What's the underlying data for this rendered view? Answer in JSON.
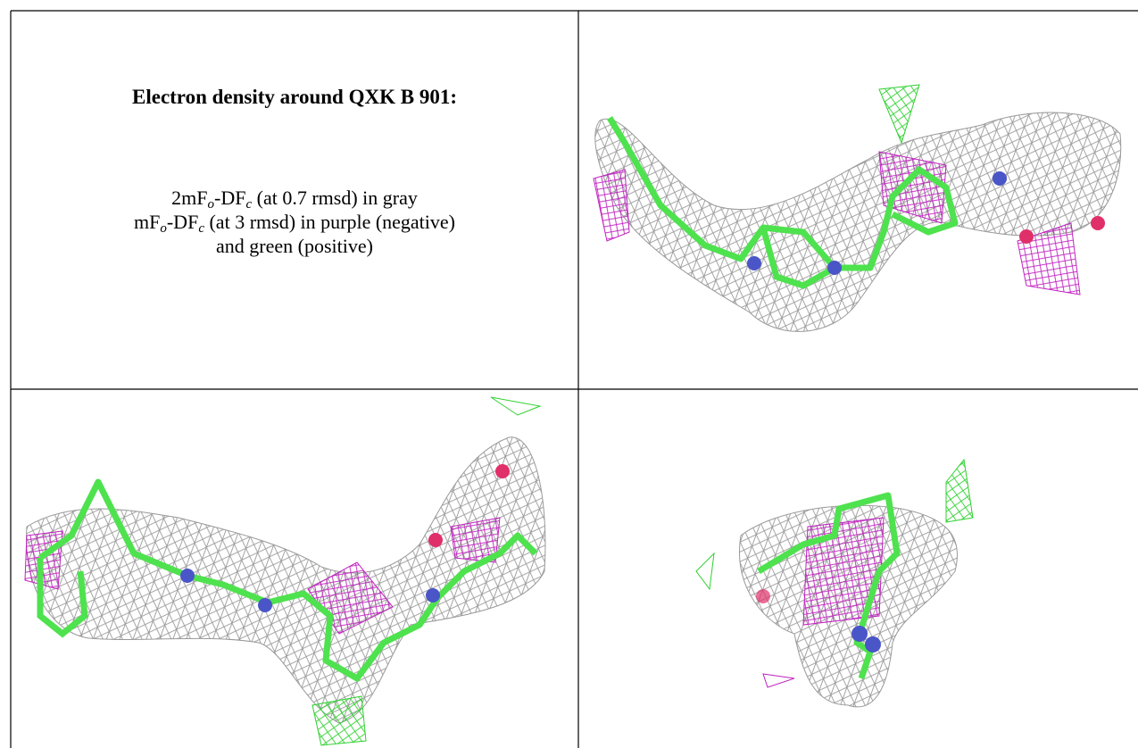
{
  "header": {
    "title": "Electron density around QXK B 901:"
  },
  "caption": {
    "lines": [
      [
        "2mF",
        "o",
        "-DF",
        "c",
        " (at 0.7 rmsd) in gray"
      ],
      [
        "mF",
        "o",
        "-DF",
        "c",
        " (at 3 rmsd) in purple (negative)"
      ],
      [
        "and green (positive)"
      ]
    ]
  }
}
